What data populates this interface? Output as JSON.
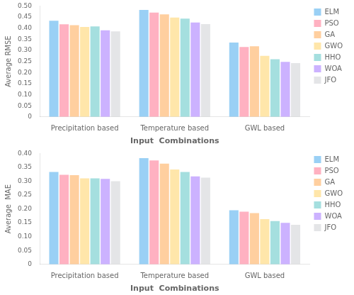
{
  "chart_data": [
    {
      "type": "bar",
      "categories": [
        "Precipitation based",
        "Temperature based",
        "GWL based"
      ],
      "series": [
        {
          "name": "ELM",
          "values": [
            0.433,
            0.482,
            0.335
          ]
        },
        {
          "name": "PSO",
          "values": [
            0.417,
            0.47,
            0.315
          ]
        },
        {
          "name": "GA",
          "values": [
            0.413,
            0.462,
            0.318
          ]
        },
        {
          "name": "GWO",
          "values": [
            0.405,
            0.448,
            0.275
          ]
        },
        {
          "name": "HHO",
          "values": [
            0.408,
            0.443,
            0.26
          ]
        },
        {
          "name": "WOA",
          "values": [
            0.39,
            0.425,
            0.248
          ]
        },
        {
          "name": "JFO",
          "values": [
            0.385,
            0.418,
            0.242
          ]
        }
      ],
      "ylabel": "Average RMSE",
      "xlabel": "Input  Combinations",
      "ylim": [
        0,
        0.5
      ],
      "yticks": [
        0,
        0.05,
        {
          "value": 0.1,
          "label": "0.10"
        },
        0.15,
        {
          "value": 0.2,
          "label": "0.20"
        },
        0.25,
        {
          "value": 0.3,
          "label": "0.30"
        },
        0.35,
        {
          "value": 0.4,
          "label": "0.40"
        },
        0.45,
        {
          "value": 0.5,
          "label": "0.50"
        }
      ],
      "grid": false,
      "legend": "upper right"
    },
    {
      "type": "bar",
      "categories": [
        "Precipitation based",
        "Temperature based",
        "GWL based"
      ],
      "series": [
        {
          "name": "ELM",
          "values": [
            0.333,
            0.383,
            0.195
          ]
        },
        {
          "name": "PSO",
          "values": [
            0.323,
            0.375,
            0.19
          ]
        },
        {
          "name": "GA",
          "values": [
            0.322,
            0.363,
            0.185
          ]
        },
        {
          "name": "GWO",
          "values": [
            0.31,
            0.342,
            0.163
          ]
        },
        {
          "name": "HHO",
          "values": [
            0.31,
            0.333,
            0.156
          ]
        },
        {
          "name": "WOA",
          "values": [
            0.308,
            0.317,
            0.15
          ]
        },
        {
          "name": "JFO",
          "values": [
            0.3,
            0.313,
            0.143
          ]
        }
      ],
      "ylabel": "Average  MAE",
      "xlabel": "Input  Combinations",
      "ylim": [
        0,
        0.4
      ],
      "yticks": [
        0,
        0.05,
        {
          "value": 0.1,
          "label": "0.10"
        },
        0.15,
        {
          "value": 0.2,
          "label": "0.20"
        },
        0.25,
        {
          "value": 0.3,
          "label": "0.30"
        },
        0.35,
        {
          "value": 0.4,
          "label": "0.40"
        }
      ],
      "grid": false,
      "legend": "upper right"
    }
  ]
}
